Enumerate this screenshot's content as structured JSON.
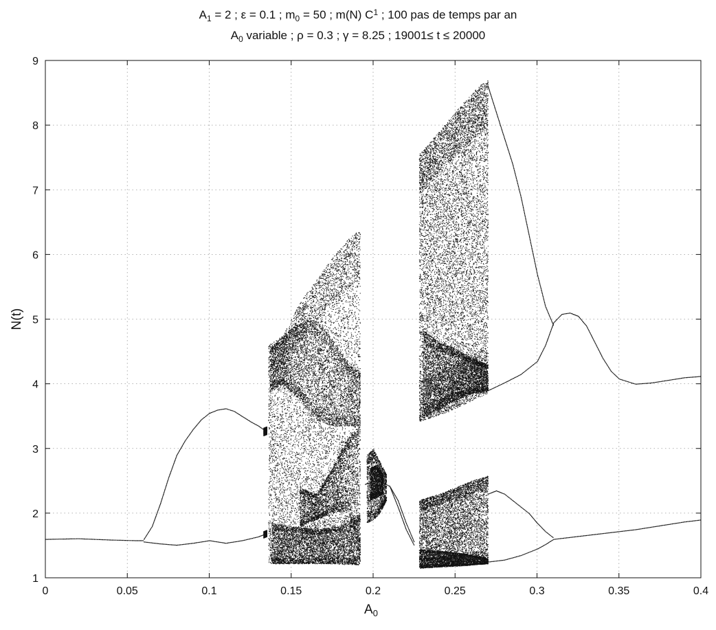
{
  "chart_data": {
    "type": "scatter",
    "title_lines": [
      [
        {
          "t": "A"
        },
        {
          "t": "1",
          "sub": true
        },
        {
          "t": " = 2 ; ε = 0.1 ; m"
        },
        {
          "t": "0",
          "sub": true
        },
        {
          "t": " = 50 ; m(N) C"
        },
        {
          "t": "1",
          "sup": true
        },
        {
          "t": " ; 100 pas de temps par an"
        }
      ],
      [
        {
          "t": "A"
        },
        {
          "t": "0",
          "sub": true
        },
        {
          "t": " variable ; ρ = 0.3 ; γ = 8.25 ; 19001≤ t ≤ 20000"
        }
      ]
    ],
    "xlabel": {
      "main": "A",
      "sub": "0"
    },
    "ylabel": "N(t)",
    "xlim": [
      0,
      0.4
    ],
    "ylim": [
      1,
      9
    ],
    "xticks": [
      0,
      0.05,
      0.1,
      0.15,
      0.2,
      0.25,
      0.3,
      0.35,
      0.4
    ],
    "xtick_labels": [
      "0",
      "0.05",
      "0.1",
      "0.15",
      "0.2",
      "0.25",
      "0.3",
      "0.35",
      "0.4"
    ],
    "yticks": [
      1,
      2,
      3,
      4,
      5,
      6,
      7,
      8,
      9
    ],
    "ytick_labels": [
      "1",
      "2",
      "3",
      "4",
      "5",
      "6",
      "7",
      "8",
      "9"
    ],
    "grid": true,
    "marker_color": "#111111",
    "series": [
      {
        "role": "fixed-point",
        "x": [
          0,
          0.02,
          0.04,
          0.055,
          0.06
        ],
        "y": [
          1.6,
          1.61,
          1.59,
          1.58,
          1.58
        ]
      },
      {
        "role": "period-2-upper",
        "x": [
          0.06,
          0.065,
          0.07,
          0.075,
          0.08,
          0.085,
          0.09,
          0.095,
          0.1,
          0.105,
          0.11,
          0.115,
          0.12,
          0.125,
          0.13,
          0.134
        ],
        "y": [
          1.6,
          1.8,
          2.15,
          2.55,
          2.9,
          3.12,
          3.3,
          3.45,
          3.55,
          3.6,
          3.62,
          3.58,
          3.5,
          3.42,
          3.35,
          3.28
        ]
      },
      {
        "role": "period-2-lower",
        "x": [
          0.06,
          0.07,
          0.08,
          0.09,
          0.1,
          0.11,
          0.12,
          0.13,
          0.134
        ],
        "y": [
          1.56,
          1.53,
          1.51,
          1.54,
          1.58,
          1.54,
          1.58,
          1.64,
          1.68
        ]
      },
      {
        "role": "period-window-upper",
        "x": [
          0.195,
          0.2,
          0.205,
          0.21,
          0.215,
          0.22,
          0.225
        ],
        "y": [
          2.45,
          2.5,
          2.48,
          2.42,
          2.2,
          1.85,
          1.55
        ]
      },
      {
        "role": "period-window-lower",
        "x": [
          0.21,
          0.215,
          0.22,
          0.225
        ],
        "y": [
          2.42,
          2.1,
          1.75,
          1.5
        ]
      },
      {
        "role": "branch-high",
        "x": [
          0.27,
          0.275,
          0.28,
          0.285,
          0.29,
          0.295,
          0.3,
          0.305,
          0.31
        ],
        "y": [
          8.6,
          8.2,
          7.8,
          7.4,
          6.9,
          6.3,
          5.7,
          5.2,
          4.9
        ]
      },
      {
        "role": "branch-mid",
        "x": [
          0.27,
          0.28,
          0.29,
          0.3,
          0.305,
          0.31,
          0.315,
          0.32,
          0.325,
          0.33,
          0.335,
          0.34,
          0.345,
          0.35,
          0.36,
          0.37,
          0.38,
          0.39,
          0.4
        ],
        "y": [
          3.9,
          4.02,
          4.15,
          4.35,
          4.6,
          4.95,
          5.08,
          5.1,
          5.05,
          4.9,
          4.65,
          4.4,
          4.2,
          4.08,
          4.0,
          4.02,
          4.06,
          4.1,
          4.12
        ]
      },
      {
        "role": "branch-mid-low",
        "x": [
          0.27,
          0.275,
          0.28,
          0.285,
          0.29,
          0.295,
          0.3,
          0.305,
          0.31
        ],
        "y": [
          2.3,
          2.35,
          2.3,
          2.2,
          2.1,
          2.0,
          1.85,
          1.72,
          1.62
        ]
      },
      {
        "role": "branch-low",
        "x": [
          0.27,
          0.28,
          0.29,
          0.3,
          0.305,
          0.31,
          0.32,
          0.33,
          0.34,
          0.35,
          0.36,
          0.37,
          0.38,
          0.39,
          0.4
        ],
        "y": [
          1.25,
          1.28,
          1.35,
          1.45,
          1.52,
          1.6,
          1.63,
          1.66,
          1.69,
          1.72,
          1.75,
          1.79,
          1.83,
          1.87,
          1.9
        ]
      }
    ],
    "chaotic_bands": [
      {
        "x": [
          0.133,
          0.135
        ],
        "y_lo": [
          3.2,
          3.22
        ],
        "y_hi": [
          3.32,
          3.34
        ],
        "density": 1600,
        "seed": 3
      },
      {
        "x": [
          0.133,
          0.135
        ],
        "y_lo": [
          1.62,
          1.64
        ],
        "y_hi": [
          1.72,
          1.74
        ],
        "density": 1400,
        "seed": 4
      },
      {
        "x": [
          0.136,
          0.145,
          0.155,
          0.165,
          0.175,
          0.185,
          0.192
        ],
        "y_lo": [
          1.22,
          1.22,
          1.22,
          1.22,
          1.22,
          1.2,
          1.2
        ],
        "y_hi": [
          4.6,
          4.75,
          5.25,
          5.6,
          5.95,
          6.25,
          6.4
        ],
        "density": 9000,
        "seed": 11
      },
      {
        "x": [
          0.137,
          0.145,
          0.155,
          0.165,
          0.175,
          0.185,
          0.192
        ],
        "y_lo": [
          3.9,
          4.0,
          3.75,
          3.45,
          3.35,
          3.35,
          3.35
        ],
        "y_hi": [
          4.55,
          4.75,
          4.95,
          5.0,
          4.7,
          4.3,
          4.2
        ],
        "density": 4200,
        "seed": 12
      },
      {
        "x": [
          0.138,
          0.15,
          0.165,
          0.18,
          0.192
        ],
        "y_lo": [
          1.22,
          1.22,
          1.22,
          1.22,
          1.2
        ],
        "y_hi": [
          1.85,
          1.8,
          1.75,
          1.8,
          2.0
        ],
        "density": 3800,
        "seed": 13
      },
      {
        "x": [
          0.155,
          0.165,
          0.175,
          0.185,
          0.192
        ],
        "y_lo": [
          1.8,
          1.9,
          2.0,
          2.05,
          1.3
        ],
        "y_hi": [
          2.4,
          2.3,
          2.7,
          3.2,
          3.35
        ],
        "density": 3200,
        "seed": 14
      },
      {
        "x": [
          0.196,
          0.2,
          0.204,
          0.208
        ],
        "y_lo": [
          1.85,
          1.9,
          2.0,
          2.2
        ],
        "y_hi": [
          2.9,
          3.0,
          2.8,
          2.6
        ],
        "density": 1800,
        "seed": 17
      },
      {
        "x": [
          0.198,
          0.202,
          0.206
        ],
        "y_lo": [
          2.2,
          2.25,
          2.3
        ],
        "y_hi": [
          2.7,
          2.75,
          2.6
        ],
        "density": 1500,
        "seed": 18
      },
      {
        "x": [
          0.228,
          0.235,
          0.245,
          0.255,
          0.265,
          0.27
        ],
        "y_lo": [
          3.42,
          3.48,
          3.56,
          3.68,
          3.8,
          3.85
        ],
        "y_hi": [
          7.55,
          7.75,
          8.05,
          8.35,
          8.62,
          8.7
        ],
        "density": 11000,
        "seed": 21
      },
      {
        "x": [
          0.23,
          0.24,
          0.25,
          0.26,
          0.27
        ],
        "y_lo": [
          3.5,
          3.6,
          3.75,
          3.85,
          3.9
        ],
        "y_hi": [
          4.85,
          4.65,
          4.55,
          4.4,
          4.3
        ],
        "density": 4500,
        "seed": 22
      },
      {
        "x": [
          0.228,
          0.24,
          0.25,
          0.26,
          0.27
        ],
        "y_lo": [
          1.15,
          1.17,
          1.18,
          1.2,
          1.22
        ],
        "y_hi": [
          2.2,
          2.3,
          2.4,
          2.5,
          2.58
        ],
        "density": 6500,
        "seed": 23
      },
      {
        "x": [
          0.228,
          0.24,
          0.255,
          0.27
        ],
        "y_lo": [
          1.15,
          1.17,
          1.19,
          1.22
        ],
        "y_hi": [
          1.45,
          1.42,
          1.38,
          1.3
        ],
        "density": 3000,
        "seed": 24
      }
    ]
  }
}
